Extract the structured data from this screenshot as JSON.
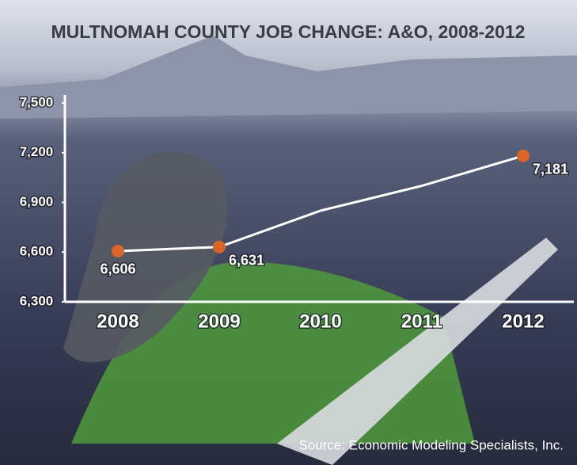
{
  "chart_data": {
    "type": "line",
    "title": "MULTNOMAH COUNTY JOB CHANGE: A&O, 2008-2012",
    "categories": [
      "2008",
      "2009",
      "2010",
      "2011",
      "2012"
    ],
    "values": [
      6606,
      6631,
      6850,
      7000,
      7181
    ],
    "value_labels": [
      "6,606",
      "6,631",
      null,
      null,
      "7,181"
    ],
    "color": "#ffffff",
    "marker_color": "#d9652b",
    "ylim": [
      6300,
      7500
    ],
    "yticks": [
      {
        "value": 6300,
        "label": "6,300"
      },
      {
        "value": 6600,
        "label": "6,600"
      },
      {
        "value": 6900,
        "label": "6,900"
      },
      {
        "value": 7200,
        "label": "7,200"
      },
      {
        "value": 7500,
        "label": "7,500"
      }
    ],
    "source": "Source: Economic Modeling Specialists, Inc."
  }
}
